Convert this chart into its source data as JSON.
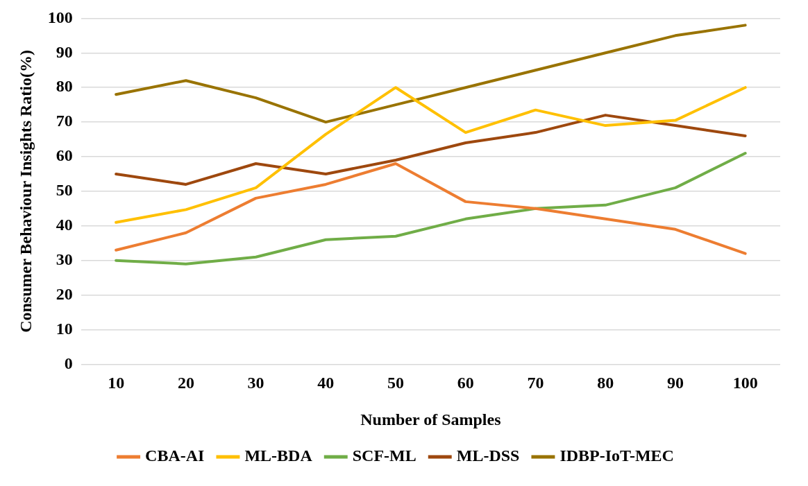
{
  "chart_data": {
    "type": "line",
    "xlabel": "Number of Samples",
    "ylabel": "Consumer Behaviour Insights Ratio(%)",
    "categories": [
      "10",
      "20",
      "30",
      "40",
      "50",
      "60",
      "70",
      "80",
      "90",
      "100"
    ],
    "ylim": [
      0,
      100
    ],
    "yticks": [
      0,
      10,
      20,
      30,
      40,
      50,
      60,
      70,
      80,
      90,
      100
    ],
    "grid": "y",
    "legend": "bottom",
    "marker": "none",
    "line_style": "solid",
    "series": [
      {
        "name": "CBA-AI",
        "color": "#ed7d31",
        "values": [
          33,
          38,
          48,
          52,
          58,
          47,
          45,
          42,
          39,
          32
        ]
      },
      {
        "name": "ML-BDA",
        "color": "#ffc000",
        "values": [
          41,
          44.7,
          51,
          66.5,
          80,
          67,
          73.5,
          69,
          70.5,
          80
        ]
      },
      {
        "name": "SCF-ML",
        "color": "#70ad47",
        "values": [
          30,
          29,
          31,
          36,
          37,
          42,
          45,
          46,
          51,
          61
        ]
      },
      {
        "name": "ML-DSS",
        "color": "#9e480e",
        "values": [
          55,
          52,
          58,
          55,
          59,
          64,
          67,
          72,
          69,
          66
        ]
      },
      {
        "name": "IDBP-IoT-MEC",
        "color": "#997300",
        "values": [
          78,
          82,
          77,
          70,
          75,
          80,
          85,
          90,
          95,
          98
        ]
      }
    ]
  }
}
